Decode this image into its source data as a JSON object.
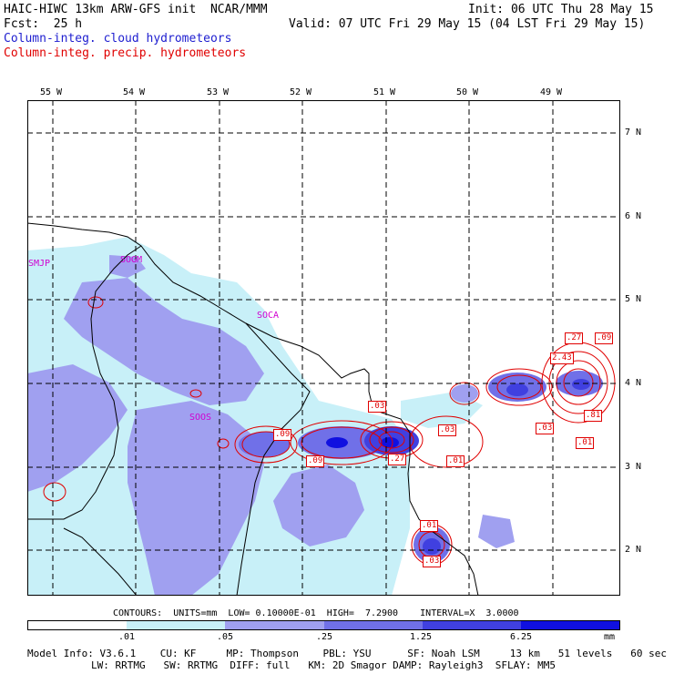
{
  "header": {
    "line1_left": "HAIC-HIWC 13km ARW-GFS init  NCAR/MMM",
    "line1_right": "Init: 06 UTC Thu 28 May 15",
    "line2_left": "Fcst:  25 h",
    "line2_right": "Valid: 07 UTC Fri 29 May 15 (04 LST Fri 29 May 15)",
    "legend_cloud": "Column-integ. cloud hydrometeors",
    "legend_precip": "Column-integ. precip. hydrometeors"
  },
  "map": {
    "lon_labels": [
      "55 W",
      "54 W",
      "53 W",
      "52 W",
      "51 W",
      "50 W",
      "49 W"
    ],
    "lat_labels": [
      "7 N",
      "6 N",
      "5 N",
      "4 N",
      "3 N",
      "2 N"
    ],
    "stations": [
      "SMJP",
      "SOGM",
      "SOCA",
      "SOOS"
    ],
    "contour_labels": [
      ".27",
      ".09",
      "2.43",
      ".03",
      ".81",
      ".01",
      ".03",
      ".09",
      ".09",
      ".27",
      ".03",
      ".01",
      ".01",
      ".03"
    ],
    "colors": {
      "fill1": "#c8f0f8",
      "fill2": "#a0a0f0",
      "fill3": "#7070e8",
      "fill4": "#4040e0",
      "fill5": "#1010e0",
      "contour": "#e00000"
    }
  },
  "contours_line": "CONTOURS:  UNITS=mm  LOW= 0.10000E-01  HIGH=  7.2900    INTERVAL=X  3.0000",
  "colorbar": {
    "labels": [
      ".01",
      ".05",
      ".25",
      "1.25",
      "6.25",
      "mm"
    ],
    "colors": [
      "#ffffff",
      "#c8f0f8",
      "#a0a0f0",
      "#7070e8",
      "#4040e0",
      "#1010e0"
    ]
  },
  "model_info": {
    "line1": "Model Info: V3.6.1    CU: KF     MP: Thompson    PBL: YSU      SF: Noah LSM     13 km   51 levels   60 sec",
    "line2": "LW: RRTMG   SW: RRTMG  DIFF: full   KM: 2D Smagor DAMP: Rayleigh3  SFLAY: MM5"
  }
}
